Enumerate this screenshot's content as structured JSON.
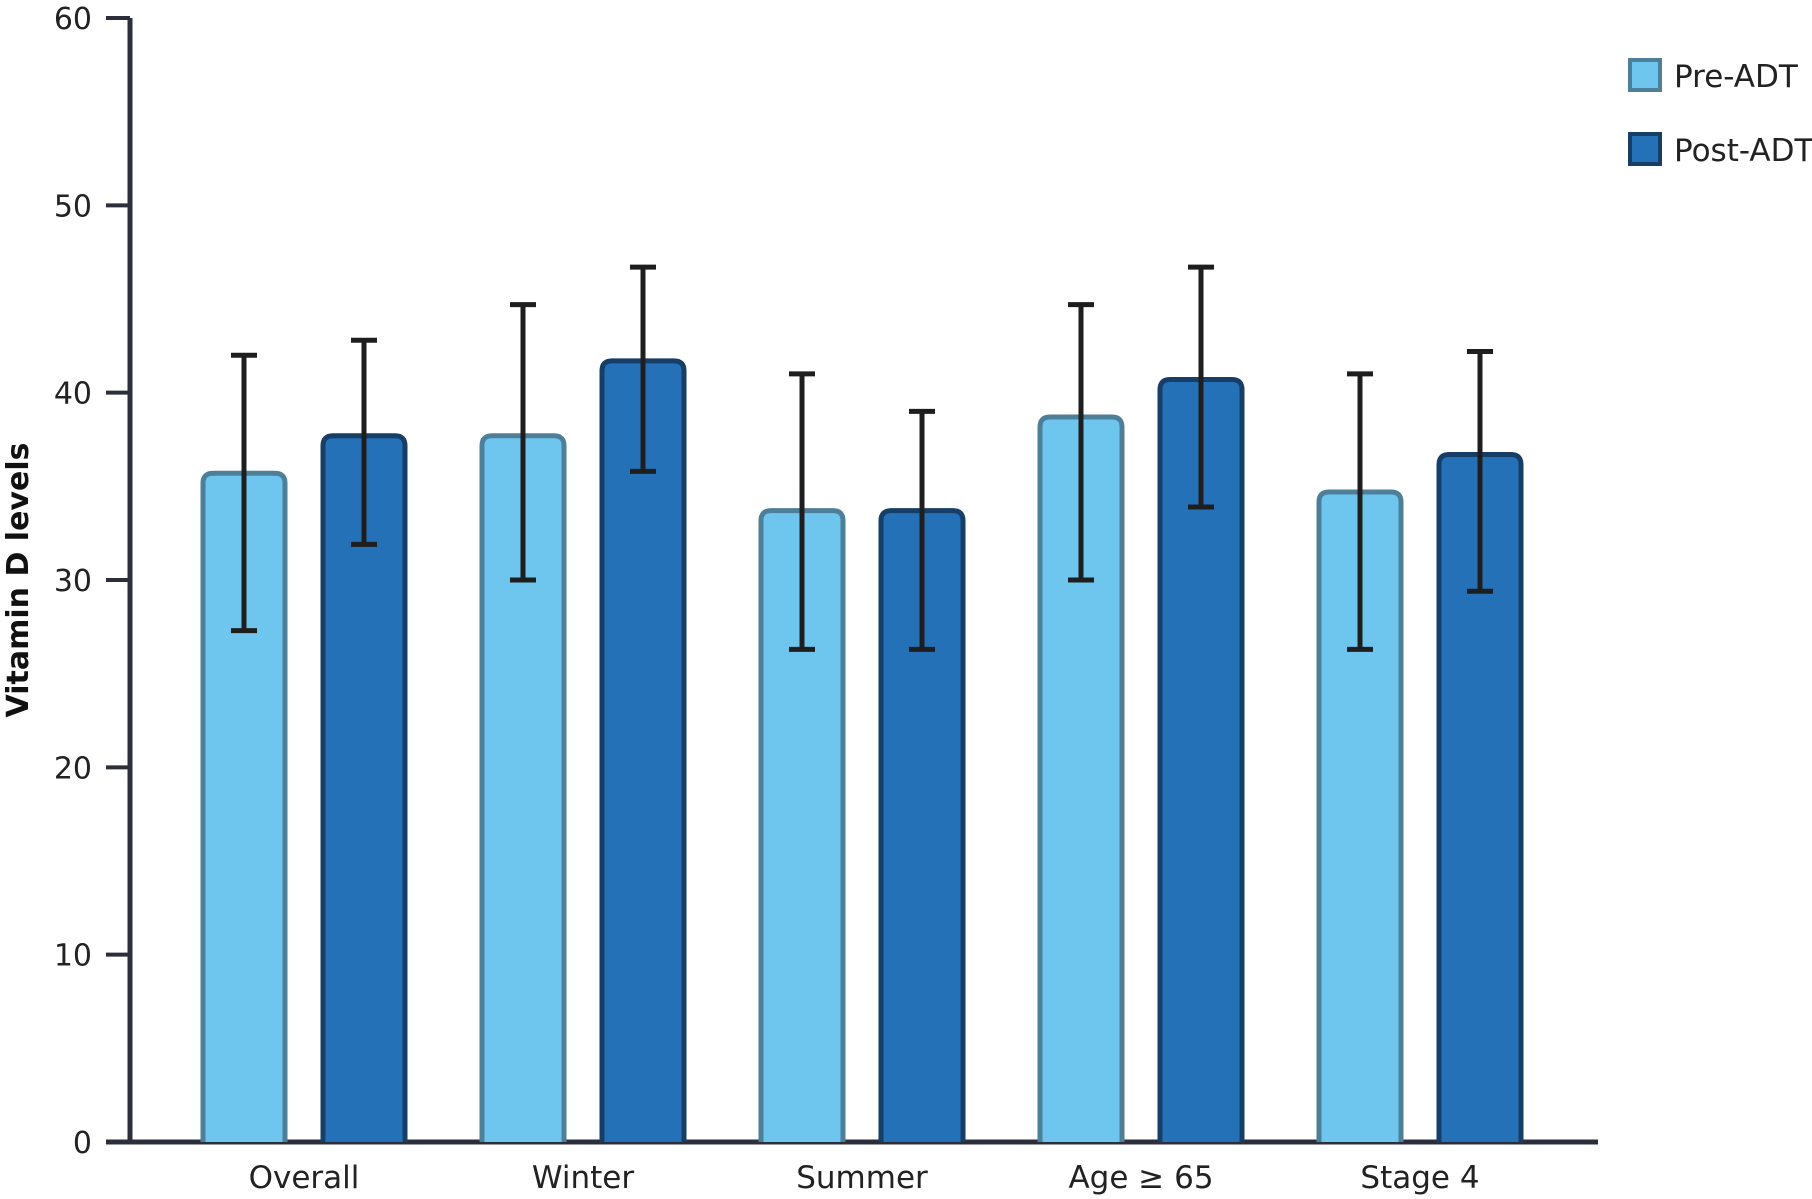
{
  "chart_data": {
    "type": "bar",
    "title": "",
    "xlabel": "",
    "ylabel": "Vitamin D levels",
    "ylim": [
      0,
      60
    ],
    "yticks": [
      "0",
      "10",
      "20",
      "30",
      "40",
      "50",
      "60"
    ],
    "categories": [
      "Overall",
      "Winter",
      "Summer",
      "Age ≥ 65",
      "Stage 4"
    ],
    "series": [
      {
        "name": "Pre-ADT",
        "color": "#6ec6ee",
        "stroke": "#4e7f99",
        "values": [
          35.7,
          37.7,
          33.7,
          38.7,
          34.7
        ],
        "error_low": [
          27.3,
          30.0,
          26.3,
          30.0,
          26.3
        ],
        "error_high": [
          42.0,
          44.7,
          41.0,
          44.7,
          41.0
        ]
      },
      {
        "name": "Post-ADT",
        "color": "#2571b8",
        "stroke": "#163e66",
        "values": [
          37.7,
          41.7,
          33.7,
          40.7,
          36.7
        ],
        "error_low": [
          31.9,
          35.8,
          26.3,
          33.9,
          29.4
        ],
        "error_high": [
          42.8,
          46.7,
          39.0,
          46.7,
          42.2
        ]
      }
    ],
    "grid": false,
    "legend": "top-right"
  }
}
